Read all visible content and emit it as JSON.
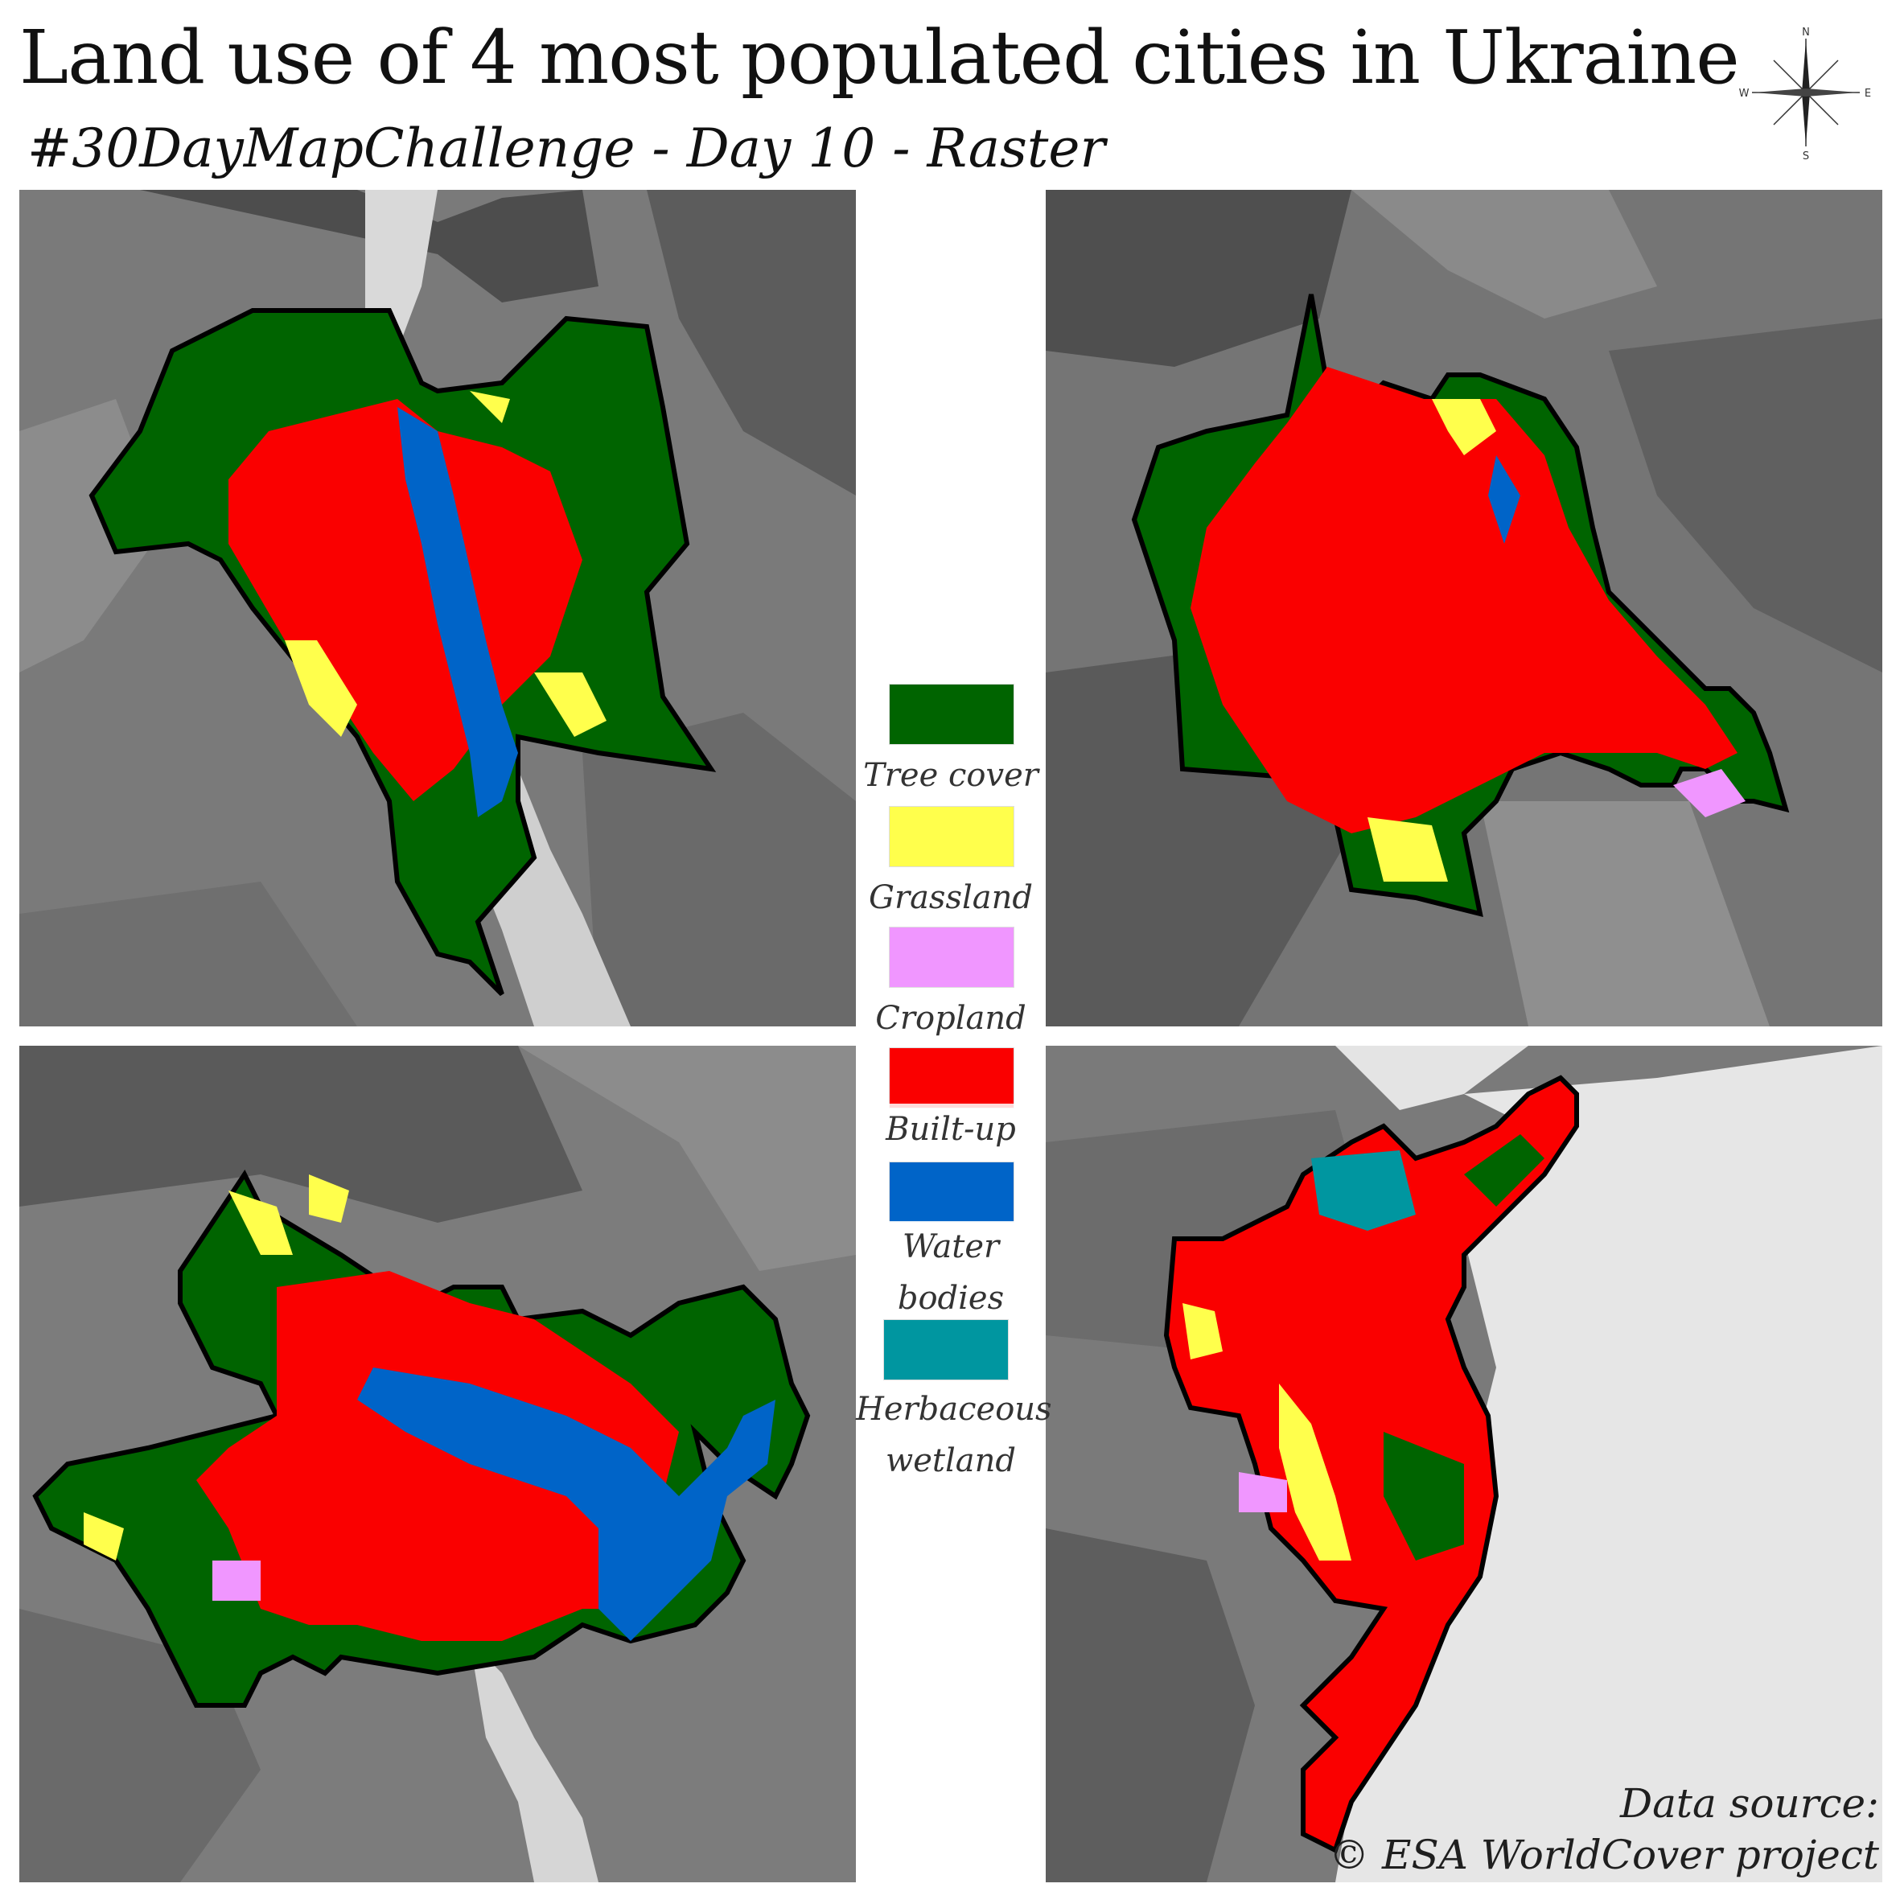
{
  "title": "Land use of 4 most populated cities in Ukraine",
  "subtitle": "#30DayMapChallenge - Day 10 - Raster",
  "compass": {
    "n": "N",
    "s": "S",
    "e": "E",
    "w": "W"
  },
  "legend": [
    {
      "label": "Tree cover",
      "color": "#006400"
    },
    {
      "label": "Grassland",
      "color": "#ffff4c"
    },
    {
      "label": "Cropland",
      "color": "#f096ff"
    },
    {
      "label": "Built-up",
      "color": "#fa0000"
    },
    {
      "label": "Water bodies",
      "color": "#0064c8"
    },
    {
      "label": "Herbaceous wetland",
      "color": "#0096a0"
    }
  ],
  "source": {
    "line1": "Data source:",
    "line2": "© ESA WorldCover project"
  },
  "maps": [
    {
      "id": "city-map-top-left"
    },
    {
      "id": "city-map-top-right"
    },
    {
      "id": "city-map-bottom-left"
    },
    {
      "id": "city-map-bottom-right"
    }
  ]
}
